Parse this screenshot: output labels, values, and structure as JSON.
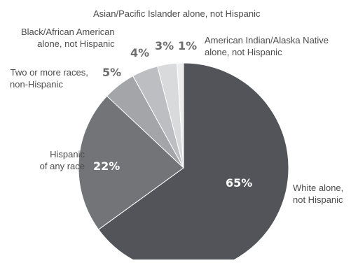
{
  "chart_data": {
    "type": "pie",
    "title": "",
    "start_angle_deg": 0,
    "direction": "clockwise",
    "slices": [
      {
        "key": "white",
        "label_lines": [
          "White alone,",
          "not Hispanic"
        ],
        "value": 65,
        "value_label": "65%",
        "color": "#53545a"
      },
      {
        "key": "hisp",
        "label_lines": [
          "Hispanic",
          "of any race"
        ],
        "value": 22,
        "value_label": "22%",
        "color": "#737478"
      },
      {
        "key": "two",
        "label_lines": [
          "Two or more races,",
          "non-Hispanic"
        ],
        "value": 5,
        "value_label": "5%",
        "color": "#a4a5a8"
      },
      {
        "key": "black",
        "label_lines": [
          "Black/African American",
          "alone, not Hispanic"
        ],
        "value": 4,
        "value_label": "4%",
        "color": "#bdbec1"
      },
      {
        "key": "asian",
        "label_lines": [
          "Asian/Pacific Islander alone, not Hispanic"
        ],
        "value": 3,
        "value_label": "3%",
        "color": "#d9dadc"
      },
      {
        "key": "ai",
        "label_lines": [
          "American Indian/Alaska Native",
          "alone, not Hispanic"
        ],
        "value": 1,
        "value_label": "1%",
        "color": "#eeeeef"
      }
    ]
  }
}
